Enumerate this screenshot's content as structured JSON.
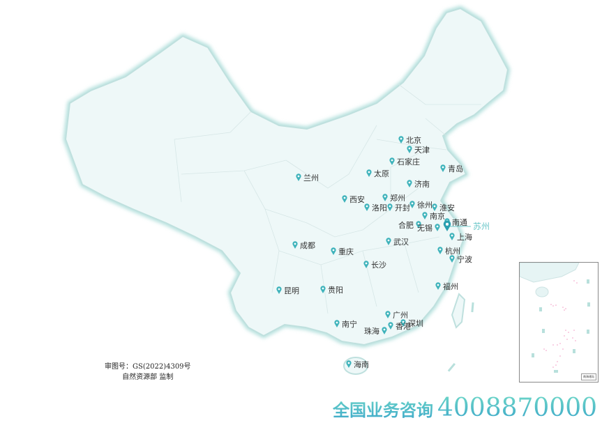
{
  "colors": {
    "land": "#eef8f8",
    "border": "#cfe3e3",
    "outer_glow": "#a9dcd8",
    "pin": "#3fb3bb",
    "highlight": "#6cc7c9",
    "island_dots": "#f29ac4"
  },
  "highlight_city": "苏州",
  "cities": [
    "北京",
    "天津",
    "石家庄",
    "青岛",
    "兰州",
    "太原",
    "济南",
    "西安",
    "郑州",
    "洛阳",
    "开封",
    "徐州",
    "淮安",
    "南京",
    "合肥",
    "无锡",
    "南通",
    "上海",
    "成都",
    "重庆",
    "武汉",
    "杭州",
    "宁波",
    "长沙",
    "昆明",
    "贵阳",
    "福州",
    "广州",
    "深圳",
    "香港",
    "南宁",
    "珠海",
    "海南"
  ],
  "review": {
    "line1": "审图号：GS(2022)4309号",
    "line2": "自然资源部 监制"
  },
  "inset": {
    "caption": "南海诸岛"
  },
  "contact": {
    "label": "全国业务咨询",
    "phone": "4008870000"
  }
}
